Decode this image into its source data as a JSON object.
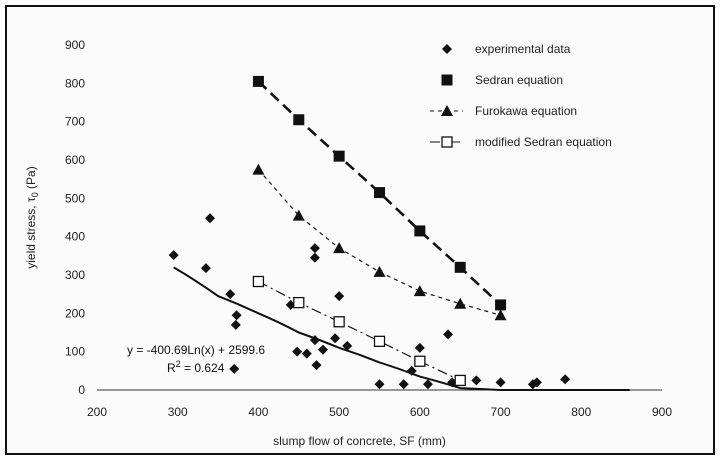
{
  "chart_data": {
    "type": "scatter",
    "title": "",
    "xlabel": "slump flow of concrete, SF (mm)",
    "ylabel_main": "yield stress, τ",
    "ylabel_sub": "0",
    "ylabel_unit": " (Pa)",
    "xlim": [
      200,
      900
    ],
    "ylim": [
      0,
      900
    ],
    "xticks": [
      "200",
      "300",
      "400",
      "500",
      "600",
      "700",
      "800",
      "900"
    ],
    "yticks": [
      "0",
      "100",
      "200",
      "300",
      "400",
      "500",
      "600",
      "700",
      "800",
      "900"
    ],
    "legend_position": "top-right",
    "series": [
      {
        "name": "experimental data",
        "marker": "diamond",
        "line": "none",
        "points": [
          [
            295,
            352
          ],
          [
            335,
            318
          ],
          [
            340,
            448
          ],
          [
            365,
            250
          ],
          [
            370,
            55
          ],
          [
            372,
            170
          ],
          [
            373,
            195
          ],
          [
            440,
            222
          ],
          [
            448,
            100
          ],
          [
            460,
            95
          ],
          [
            470,
            370
          ],
          [
            470,
            345
          ],
          [
            470,
            130
          ],
          [
            472,
            65
          ],
          [
            480,
            105
          ],
          [
            495,
            135
          ],
          [
            500,
            245
          ],
          [
            510,
            115
          ],
          [
            550,
            15
          ],
          [
            580,
            15
          ],
          [
            590,
            50
          ],
          [
            600,
            110
          ],
          [
            610,
            15
          ],
          [
            635,
            145
          ],
          [
            640,
            20
          ],
          [
            670,
            25
          ],
          [
            700,
            20
          ],
          [
            740,
            15
          ],
          [
            745,
            20
          ],
          [
            780,
            28
          ]
        ]
      },
      {
        "name": "Sedran equation",
        "marker": "filled-square",
        "line": "long-dash",
        "points": [
          [
            400,
            805
          ],
          [
            450,
            705
          ],
          [
            500,
            610
          ],
          [
            550,
            515
          ],
          [
            600,
            415
          ],
          [
            650,
            320
          ],
          [
            700,
            222
          ]
        ]
      },
      {
        "name": "Furokawa equation",
        "marker": "filled-triangle",
        "line": "short-dash",
        "points": [
          [
            400,
            575
          ],
          [
            450,
            455
          ],
          [
            500,
            370
          ],
          [
            550,
            308
          ],
          [
            600,
            258
          ],
          [
            650,
            225
          ],
          [
            700,
            195
          ]
        ]
      },
      {
        "name": "modified Sedran equation",
        "marker": "open-square",
        "line": "dash-dot",
        "points": [
          [
            400,
            283
          ],
          [
            450,
            228
          ],
          [
            500,
            178
          ],
          [
            550,
            127
          ],
          [
            600,
            75
          ],
          [
            650,
            25
          ]
        ]
      },
      {
        "name": "",
        "marker": "none",
        "line": "solid",
        "fit": "logarithmic",
        "points": [
          [
            295,
            320
          ],
          [
            350,
            245
          ],
          [
            400,
            200
          ],
          [
            450,
            150
          ],
          [
            500,
            110
          ],
          [
            550,
            72
          ],
          [
            600,
            35
          ],
          [
            650,
            5
          ],
          [
            700,
            0
          ],
          [
            860,
            0
          ]
        ]
      }
    ],
    "annotations": {
      "equation": "y = -400.69Ln(x) + 2599.6",
      "r_squared": "R",
      "r_squared_exp": "2",
      "r_squared_value": " = 0.624"
    },
    "colors": {
      "marks": "#111111",
      "background": "#fbfbfb",
      "axis": "#333333"
    }
  }
}
